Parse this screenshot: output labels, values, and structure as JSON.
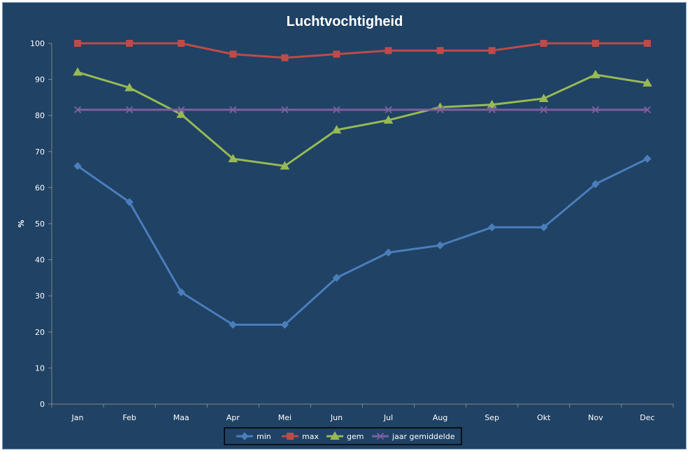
{
  "chart_data": {
    "type": "line",
    "title": "Luchtvochtigheid",
    "xlabel": "",
    "ylabel": "%",
    "ylim": [
      0,
      100
    ],
    "yticks": [
      0,
      10,
      20,
      30,
      40,
      50,
      60,
      70,
      80,
      90,
      100
    ],
    "categories": [
      "Jan",
      "Feb",
      "Maa",
      "Apr",
      "Mei",
      "Jun",
      "Jul",
      "Aug",
      "Sep",
      "Okt",
      "Nov",
      "Dec"
    ],
    "grid": false,
    "legend_position": "bottom",
    "background_color": "#1f4265",
    "series": [
      {
        "name": "min",
        "color": "#4a7ebb",
        "marker": "diamond",
        "values": [
          66,
          56,
          31,
          22,
          22,
          35,
          42,
          44,
          49,
          49,
          61,
          68
        ]
      },
      {
        "name": "max",
        "color": "#be4b48",
        "marker": "square",
        "values": [
          100,
          100,
          100,
          97,
          96,
          97,
          98,
          98,
          98,
          100,
          100,
          100
        ]
      },
      {
        "name": "gem",
        "color": "#98b954",
        "marker": "triangle",
        "values": [
          92,
          87.7,
          80.3,
          68,
          66,
          76,
          78.7,
          82.3,
          83,
          84.7,
          91.3,
          89
        ]
      },
      {
        "name": "jaar gemiddelde",
        "color": "#7d60a0",
        "marker": "x",
        "values": [
          81.6,
          81.6,
          81.6,
          81.6,
          81.6,
          81.6,
          81.6,
          81.6,
          81.6,
          81.6,
          81.6,
          81.6
        ]
      }
    ]
  }
}
